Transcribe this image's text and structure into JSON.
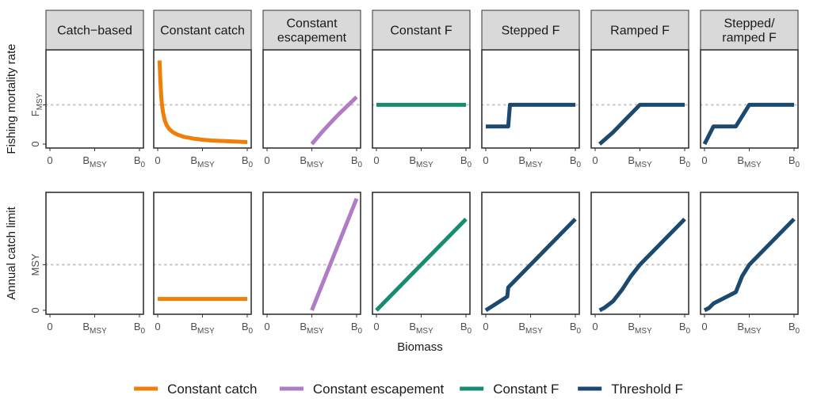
{
  "chart_data": {
    "type": "line",
    "facets": [
      "Catch−based",
      "Constant catch",
      "Constant escapement",
      "Constant F",
      "Stepped F",
      "Ramped F",
      "Stepped/ ramped F"
    ],
    "facet_lines": [
      [
        "Catch−based"
      ],
      [
        "Constant catch"
      ],
      [
        "Constant",
        "escapement"
      ],
      [
        "Constant F"
      ],
      [
        "Stepped F"
      ],
      [
        "Ramped F"
      ],
      [
        "Stepped/",
        "ramped F"
      ]
    ],
    "xlabel": "Biomass",
    "x_ticks": {
      "values": [
        0,
        0.5,
        1
      ],
      "labels": [
        {
          "base": "0",
          "sub": ""
        },
        {
          "base": "B",
          "sub": "MSY"
        },
        {
          "base": "B",
          "sub": "0"
        }
      ]
    },
    "rows": [
      {
        "ylabel": "Fishing mortality rate",
        "ylim": [
          0,
          2.3
        ],
        "y_ticks": [
          {
            "value": 0,
            "base": "0",
            "sub": ""
          },
          {
            "value": 1,
            "base": "F",
            "sub": "MSY"
          }
        ],
        "reference_y": 1
      },
      {
        "ylabel": "Annual catch limit",
        "ylim": [
          0,
          2.5
        ],
        "y_ticks": [
          {
            "value": 0,
            "base": "0",
            "sub": ""
          },
          {
            "value": 1,
            "base": "MSY",
            "sub": ""
          }
        ],
        "reference_y": 1
      }
    ],
    "series": [
      {
        "name": "Constant catch",
        "color": "#F07F09",
        "panels": [
          {
            "row": 0,
            "col": 1,
            "points": [
              [
                0.02,
                2.13
              ],
              [
                0.03,
                1.6
              ],
              [
                0.04,
                1.2
              ],
              [
                0.05,
                0.95
              ],
              [
                0.06,
                0.8
              ],
              [
                0.08,
                0.6
              ],
              [
                0.1,
                0.48
              ],
              [
                0.13,
                0.38
              ],
              [
                0.17,
                0.3
              ],
              [
                0.22,
                0.24
              ],
              [
                0.3,
                0.18
              ],
              [
                0.4,
                0.14
              ],
              [
                0.5,
                0.11
              ],
              [
                0.6,
                0.09
              ],
              [
                0.7,
                0.08
              ],
              [
                0.8,
                0.07
              ],
              [
                0.9,
                0.06
              ],
              [
                1.0,
                0.05
              ]
            ]
          },
          {
            "row": 1,
            "col": 1,
            "points": [
              [
                0.0,
                0.25
              ],
              [
                1.0,
                0.25
              ]
            ]
          }
        ]
      },
      {
        "name": "Constant escapement",
        "color": "#B07CC6",
        "panels": [
          {
            "row": 0,
            "col": 2,
            "points": [
              [
                0.5,
                0.0
              ],
              [
                0.6,
                0.27
              ],
              [
                0.7,
                0.52
              ],
              [
                0.8,
                0.76
              ],
              [
                0.9,
                0.98
              ],
              [
                1.0,
                1.2
              ]
            ]
          },
          {
            "row": 1,
            "col": 2,
            "points": [
              [
                0.5,
                0.0
              ],
              [
                1.0,
                2.45
              ]
            ]
          }
        ]
      },
      {
        "name": "Constant F",
        "color": "#188B73",
        "panels": [
          {
            "row": 0,
            "col": 3,
            "points": [
              [
                0.0,
                1.0
              ],
              [
                1.0,
                1.0
              ]
            ]
          },
          {
            "row": 1,
            "col": 3,
            "points": [
              [
                0.0,
                0.0
              ],
              [
                1.0,
                2.0
              ]
            ]
          }
        ]
      },
      {
        "name": "Threshold F",
        "color": "#1C4A6E",
        "panels": [
          {
            "row": 0,
            "col": 4,
            "points": [
              [
                0.0,
                0.45
              ],
              [
                0.25,
                0.45
              ],
              [
                0.27,
                1.0
              ],
              [
                1.0,
                1.0
              ]
            ]
          },
          {
            "row": 0,
            "col": 5,
            "points": [
              [
                0.05,
                0.0
              ],
              [
                0.2,
                0.3
              ],
              [
                0.35,
                0.65
              ],
              [
                0.5,
                1.0
              ],
              [
                1.0,
                1.0
              ]
            ]
          },
          {
            "row": 0,
            "col": 6,
            "points": [
              [
                0.0,
                0.0
              ],
              [
                0.1,
                0.45
              ],
              [
                0.35,
                0.45
              ],
              [
                0.5,
                1.0
              ],
              [
                1.0,
                1.0
              ]
            ]
          },
          {
            "row": 1,
            "col": 4,
            "points": [
              [
                0.0,
                0.0
              ],
              [
                0.24,
                0.3
              ],
              [
                0.25,
                0.5
              ],
              [
                0.27,
                0.54
              ],
              [
                1.0,
                2.0
              ]
            ]
          },
          {
            "row": 1,
            "col": 5,
            "points": [
              [
                0.05,
                0.0
              ],
              [
                0.1,
                0.05
              ],
              [
                0.2,
                0.2
              ],
              [
                0.3,
                0.45
              ],
              [
                0.4,
                0.75
              ],
              [
                0.5,
                1.0
              ],
              [
                1.0,
                2.0
              ]
            ]
          },
          {
            "row": 1,
            "col": 6,
            "points": [
              [
                0.0,
                0.0
              ],
              [
                0.05,
                0.05
              ],
              [
                0.1,
                0.15
              ],
              [
                0.35,
                0.4
              ],
              [
                0.42,
                0.75
              ],
              [
                0.5,
                1.0
              ],
              [
                1.0,
                2.0
              ]
            ]
          }
        ]
      }
    ],
    "legend": {
      "position": "bottom",
      "entries": [
        "Constant catch",
        "Constant escapement",
        "Constant F",
        "Threshold F"
      ]
    }
  }
}
